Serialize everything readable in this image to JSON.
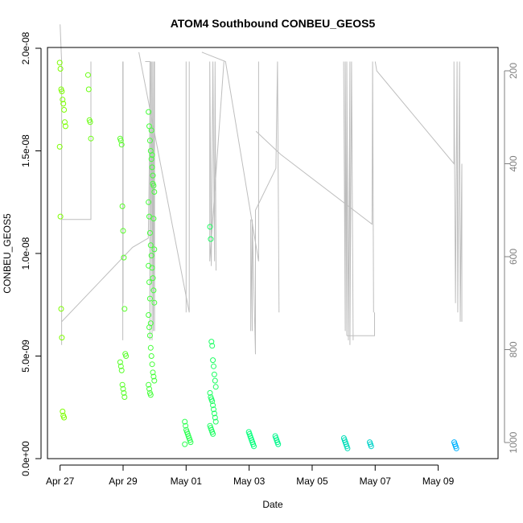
{
  "chart_data": {
    "type": "scatter",
    "title": "ATOM4 Southbound CONBEU_GEOS5",
    "xlabel": "Date",
    "ylabel": "CONBEU_GEOS5",
    "x_ticks": [
      "Apr 27",
      "Apr 29",
      "May 01",
      "May 03",
      "May 05",
      "May 07",
      "May 09"
    ],
    "xlim_days": [
      26.6,
      40.9
    ],
    "ylim": [
      0,
      2e-08
    ],
    "y_ticks": [
      "0.0e+00",
      "5.0e-09",
      "1.0e-08",
      "1.5e-08",
      "2.0e-08"
    ],
    "y2_label": "",
    "y2_ticks": [
      "200",
      "400",
      "600",
      "800",
      "1000"
    ],
    "y2_reversed": true,
    "y2_series_color": "#bebebe",
    "color_gradient": [
      "#7fff00",
      "#00ff7f",
      "#00b2ff"
    ],
    "clusters": [
      {
        "x": "Apr 27 02:00",
        "day": 27.08,
        "values": [
          1.93e-08,
          1.9e-08,
          1.8e-08,
          1.79e-08,
          1.75e-08,
          1.73e-08,
          1.7e-08,
          1.64e-08,
          1.62e-08,
          1.52e-08,
          1.18e-08,
          7.3e-09,
          5.9e-09,
          2.3e-09,
          2.1e-09,
          2e-09
        ]
      },
      {
        "x": "Apr 28 00:00",
        "day": 27.98,
        "values": [
          1.87e-08,
          1.8e-08,
          1.65e-08,
          1.64e-08,
          1.56e-08
        ]
      },
      {
        "x": "Apr 29 00:00",
        "day": 29.0,
        "values": [
          1.56e-08,
          1.55e-08,
          1.53e-08,
          1.23e-08,
          1.11e-08,
          9.8e-09,
          7.3e-09,
          5.1e-09,
          5e-09,
          4.7e-09,
          4.5e-09,
          4.3e-09,
          3.6e-09,
          3.4e-09,
          3.2e-09,
          3e-09
        ]
      },
      {
        "x": "Apr 29 20:00",
        "day": 29.9,
        "values": [
          1.69e-08,
          1.62e-08,
          1.55e-08,
          1.5e-08,
          1.46e-08,
          1.42e-08,
          1.38e-08,
          1.33e-08,
          1.3e-08,
          1.25e-08,
          1.18e-08,
          1.1e-08,
          1.04e-08,
          9.9e-09,
          9.3e-09,
          8.8e-09,
          8.2e-09,
          7.6e-09,
          7e-09,
          6.4e-09,
          6e-09,
          5.4e-09,
          5e-09,
          4.6e-09,
          4.2e-09,
          4e-09,
          3.8e-09,
          3.6e-09,
          3.4e-09,
          3.2e-09,
          3.1e-09,
          1.6e-08,
          1.48e-08,
          1.34e-08,
          1.17e-08,
          1.02e-08,
          9.4e-09,
          8.6e-09,
          7.8e-09,
          6.6e-09
        ]
      },
      {
        "x": "May 01 00:00",
        "day": 31.05,
        "values": [
          1.8e-09,
          1.6e-09,
          1.4e-09,
          1.3e-09,
          1.2e-09,
          1.1e-09,
          1e-09,
          9e-10,
          8e-10,
          7e-10
        ]
      },
      {
        "x": "May 01 20:00",
        "day": 31.85,
        "values": [
          1.13e-08,
          1.07e-08,
          5.7e-09,
          5.5e-09,
          4.8e-09,
          4.5e-09,
          4.1e-09,
          3.8e-09,
          3.5e-09,
          3.2e-09,
          3e-09,
          2.9e-09,
          2.8e-09,
          2.6e-09,
          2.4e-09,
          2.2e-09,
          2e-09,
          1.8e-09,
          1.6e-09,
          1.5e-09,
          1.4e-09,
          1.3e-09,
          1.2e-09
        ]
      },
      {
        "x": "May 03 02:00",
        "day": 33.08,
        "values": [
          1.3e-09,
          1.2e-09,
          1.1e-09,
          1e-09,
          9e-10,
          8e-10,
          7e-10,
          6e-10
        ]
      },
      {
        "x": "May 03 22:00",
        "day": 33.92,
        "values": [
          1.1e-09,
          1e-09,
          9e-10,
          8e-10,
          7e-10
        ]
      },
      {
        "x": "May 06 02:00",
        "day": 36.1,
        "values": [
          1e-09,
          9e-10,
          8e-10,
          7e-10,
          6e-10,
          5e-10
        ]
      },
      {
        "x": "May 06 22:00",
        "day": 36.92,
        "values": [
          8e-10,
          7e-10,
          6e-10
        ]
      },
      {
        "x": "May 09 14:00",
        "day": 39.6,
        "values": [
          8e-10,
          7e-10,
          6e-10,
          5e-10
        ]
      }
    ]
  }
}
